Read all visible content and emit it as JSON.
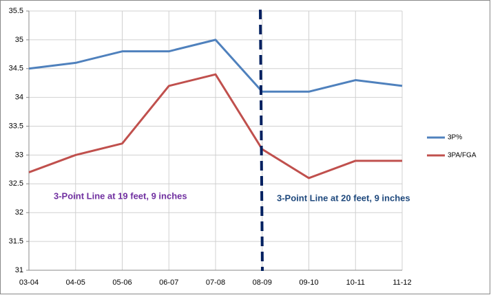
{
  "chart_data": {
    "type": "line",
    "categories": [
      "03-04",
      "04-05",
      "05-06",
      "06-07",
      "07-08",
      "08-09",
      "09-10",
      "10-11",
      "11-12"
    ],
    "series": [
      {
        "name": "3P%",
        "color": "#4f81bd",
        "values": [
          34.5,
          34.6,
          34.8,
          34.8,
          35.0,
          34.1,
          34.1,
          34.3,
          34.2
        ]
      },
      {
        "name": "3PA/FGA",
        "color": "#c0504d",
        "values": [
          32.7,
          33.0,
          33.2,
          34.2,
          34.4,
          33.1,
          32.6,
          32.9,
          32.9
        ]
      }
    ],
    "ylim": [
      31,
      35.5
    ],
    "yticks": [
      31,
      31.5,
      32,
      32.5,
      33,
      33.5,
      34,
      34.5,
      35,
      35.5
    ],
    "grid": true,
    "annotations": [
      "3-Point Line at 19 feet, 9 inches",
      "3-Point Line at 20 feet, 9 inches"
    ]
  }
}
